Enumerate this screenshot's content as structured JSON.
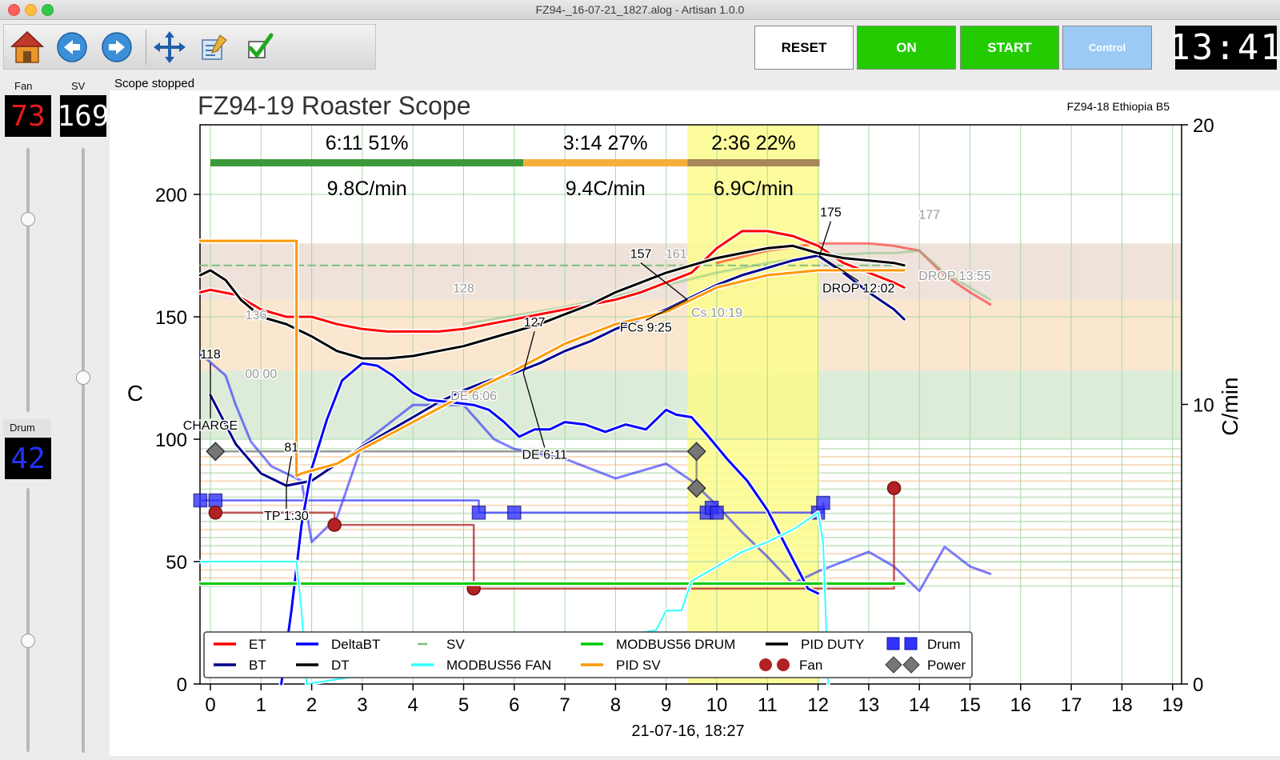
{
  "window": {
    "title": "FZ94-_16-07-21_1827.alog - Artisan 1.0.0"
  },
  "toolbar": {
    "icons": [
      "home-icon",
      "back-arrow-icon",
      "forward-arrow-icon",
      "move-cross-icon",
      "notes-icon",
      "checkmark-icon"
    ]
  },
  "buttons": {
    "reset": "RESET",
    "on": "ON",
    "start": "START",
    "control": "Control"
  },
  "clock": "13:41",
  "status": "Scope stopped",
  "left": {
    "fan_label": "Fan",
    "fan_value": "73",
    "fan_level": 0.73,
    "sv_label": "SV",
    "sv_value": "169",
    "sv_level": 0.62,
    "drum_label": "Drum",
    "drum_value": "42",
    "drum_level": 0.42
  },
  "colors": {
    "et": "#ff0000",
    "bt": "#00008b",
    "deltabt": "#0000ff",
    "dt": "#000000",
    "sv": "#7fbf7f",
    "fan_line": "#33ffff",
    "drum_line": "#00cc00",
    "pid_sv": "#ff9900",
    "pid_duty": "#000000",
    "events_drum": "#3333ff",
    "events_fan": "#b22222",
    "events_power": "#777777"
  },
  "chart_data": {
    "type": "line",
    "title": "FZ94-19 Roaster Scope",
    "background_profile": "FZ94-18 Ethiopia B5",
    "xlabel": "21-07-16, 18:27",
    "ylabel": "C",
    "ylabel_right": "C/min",
    "xlim": [
      0,
      19
    ],
    "ylim": [
      0,
      200
    ],
    "ylim_right": [
      0,
      20
    ],
    "x_ticks": [
      "0",
      "1",
      "2",
      "3",
      "4",
      "5",
      "6",
      "7",
      "8",
      "9",
      "10",
      "11",
      "12",
      "13",
      "14",
      "15",
      "16",
      "17",
      "18",
      "19"
    ],
    "y_ticks": [
      "0",
      "50",
      "100",
      "150",
      "200"
    ],
    "y_ticks_right": [
      "0",
      "10",
      "20"
    ],
    "phases": [
      {
        "time": "6:11",
        "pct": "51%",
        "ror": "9.8C/min",
        "start": 0,
        "end": 6.18,
        "color": "#3a9a3a"
      },
      {
        "time": "3:14",
        "pct": "27%",
        "ror": "9.4C/min",
        "start": 6.18,
        "end": 9.42,
        "color": "#f5b03c"
      },
      {
        "time": "2:36",
        "pct": "22%",
        "ror": "6.9C/min",
        "start": 9.42,
        "end": 12.03,
        "color": "#a8865a"
      }
    ],
    "bands": [
      {
        "y0": 128,
        "y1": 157,
        "color": "#fbe6cf"
      },
      {
        "y0": 157,
        "y1": 180,
        "color": "#eee2da"
      },
      {
        "y0": 100,
        "y1": 128,
        "color": "#dcecd8"
      }
    ],
    "yellow_region": [
      9.42,
      12.03
    ],
    "series": [
      {
        "name": "ET",
        "key": "et",
        "width": 3,
        "x": [
          -0.2,
          0,
          0.5,
          1,
          1.5,
          2,
          2.5,
          3,
          3.5,
          4,
          4.5,
          5,
          5.5,
          6,
          6.5,
          7,
          7.5,
          8,
          8.5,
          9,
          9.5,
          10,
          10.5,
          11,
          11.5,
          12,
          12.5,
          13,
          13.5,
          13.7
        ],
        "y": [
          160,
          161,
          159,
          153,
          150,
          150,
          147,
          145,
          144,
          144,
          144,
          145,
          147,
          149,
          151,
          153,
          155,
          157,
          160,
          164,
          168,
          178,
          185,
          185,
          183,
          179,
          172,
          168,
          164,
          162
        ]
      },
      {
        "name": "BT",
        "key": "bt",
        "width": 3,
        "x": [
          0,
          0.5,
          1,
          1.5,
          2,
          2.5,
          3,
          3.5,
          4,
          4.5,
          5,
          5.5,
          6,
          6.5,
          7,
          7.5,
          8,
          8.5,
          9,
          9.5,
          10,
          10.5,
          11,
          11.5,
          12,
          12.5,
          13,
          13.5,
          13.7
        ],
        "y": [
          118,
          98,
          86,
          81,
          83,
          90,
          97,
          103,
          109,
          115,
          120,
          124,
          127,
          131,
          136,
          140,
          145,
          149,
          153,
          158,
          163,
          167,
          170,
          173,
          175,
          168,
          160,
          153,
          149
        ]
      },
      {
        "name": "DT",
        "key": "dt",
        "width": 3,
        "x": [
          -0.2,
          0,
          0.3,
          0.6,
          1,
          1.5,
          2,
          2.5,
          3,
          3.5,
          4,
          4.5,
          5,
          5.5,
          6,
          6.5,
          7,
          7.5,
          8,
          8.5,
          9,
          9.5,
          10,
          10.5,
          11,
          11.5,
          12,
          12.5,
          13,
          13.5,
          13.7
        ],
        "y": [
          167,
          169,
          165,
          157,
          150,
          147,
          142,
          136,
          133,
          133,
          134,
          136,
          138,
          141,
          144,
          147,
          151,
          155,
          160,
          164,
          168,
          171,
          174,
          176,
          178,
          179,
          176,
          174,
          173,
          172,
          171
        ]
      },
      {
        "name": "DeltaBT",
        "key": "deltabt",
        "width": 3,
        "x": [
          1.4,
          1.6,
          1.8,
          2,
          2.3,
          2.6,
          3,
          3.3,
          3.6,
          4,
          4.3,
          4.8,
          5.2,
          5.5,
          5.8,
          6.1,
          6.4,
          6.7,
          7,
          7.4,
          7.8,
          8.2,
          8.6,
          9,
          9.2,
          9.5,
          9.8,
          10.2,
          10.6,
          11,
          11.5,
          11.8,
          12
        ],
        "y": [
          0,
          30,
          65,
          88,
          108,
          124,
          131,
          130,
          126,
          119,
          116,
          115,
          114,
          112,
          107,
          101,
          104,
          104,
          107,
          106,
          103,
          106,
          104,
          112,
          110,
          109,
          102,
          92,
          83,
          71,
          51,
          39,
          37
        ]
      },
      {
        "name": "PID SV",
        "key": "pid_sv",
        "width": 3,
        "x": [
          -0.2,
          1.7,
          1.7,
          1.8,
          2.5,
          3,
          4,
          5,
          6,
          7,
          8,
          9,
          10,
          11,
          12,
          13.7
        ],
        "y": [
          181,
          181,
          85,
          86,
          90,
          96,
          107,
          118,
          128,
          139,
          147,
          152,
          162,
          167,
          169,
          169
        ]
      },
      {
        "name": "MODBUS56 DRUM",
        "key": "drum_line",
        "width": 3,
        "x": [
          -0.2,
          13.7
        ],
        "y": [
          41,
          41
        ]
      },
      {
        "name": "MODBUS56 FAN",
        "key": "fan_line",
        "width": 2,
        "x": [
          -0.2,
          1.7,
          1.8,
          1.9,
          8.8,
          9.0,
          9.3,
          9.5,
          10,
          10.5,
          11,
          11.5,
          12,
          12.1,
          12.2
        ],
        "y": [
          50,
          50,
          30,
          0,
          22,
          30,
          30,
          42,
          48,
          54,
          58,
          63,
          70,
          58,
          0
        ]
      }
    ],
    "background_series": [
      {
        "name": "SV",
        "key": "sv",
        "dash": true,
        "x": [
          -0.2,
          13.7
        ],
        "y": [
          171,
          171
        ]
      },
      {
        "key": "et",
        "x": [
          10,
          11,
          12,
          13,
          13.5,
          14,
          14.5,
          15,
          15.4
        ],
        "y": [
          172,
          177,
          180,
          180,
          179,
          177,
          167,
          160,
          155
        ]
      },
      {
        "key": "sv",
        "x": [
          5,
          7,
          9,
          10,
          11,
          12,
          13,
          13.5,
          14,
          14.5,
          15,
          15.4
        ],
        "y": [
          147,
          154,
          163,
          168,
          172,
          175,
          176,
          176,
          177,
          168,
          162,
          157
        ]
      },
      {
        "key": "deltabt",
        "x": [
          -0.2,
          0.3,
          0.5,
          0.8,
          1.2,
          1.6,
          1.8,
          2.0,
          2.5,
          3,
          4,
          5,
          5.6,
          6,
          7,
          8,
          9,
          9.5,
          10,
          10.5,
          11,
          11.5,
          12,
          12.5,
          13,
          13.5,
          14,
          14.5,
          15,
          15.4
        ],
        "y": [
          135,
          126,
          114,
          99,
          89,
          85,
          83,
          58,
          68,
          98,
          114,
          114,
          100,
          96,
          92,
          84,
          90,
          83,
          73,
          62,
          52,
          41,
          46,
          50,
          54,
          48,
          38,
          56,
          48,
          45
        ]
      }
    ],
    "event_lines": [
      {
        "name": "Drum",
        "key": "events_drum",
        "marker": "square",
        "x": [
          -0.2,
          0.1,
          5.3,
          6.0,
          9.8,
          9.9,
          10.0,
          12.0,
          12.1
        ],
        "y": [
          75,
          75,
          70,
          70,
          70,
          72,
          70,
          70,
          74
        ]
      },
      {
        "name": "Fan",
        "key": "events_fan",
        "marker": "circle",
        "x": [
          0.1,
          2.45,
          5.2,
          13.5
        ],
        "y": [
          70,
          65,
          39,
          80
        ]
      },
      {
        "name": "Power",
        "key": "events_power",
        "marker": "diamond",
        "x": [
          0.1,
          9.6,
          9.6
        ],
        "y": [
          95,
          95,
          80
        ]
      }
    ],
    "annotations": [
      {
        "text": "CHARGE",
        "x": 0.0,
        "y": 118,
        "tx": 0.0,
        "ty": 104
      },
      {
        "text": "118",
        "x": 0.0,
        "y": 118,
        "tx": 0.0,
        "ty": 133
      },
      {
        "text": "TP 1:30",
        "x": 1.5,
        "y": 81,
        "tx": 1.5,
        "ty": 67
      },
      {
        "text": "81",
        "x": 1.5,
        "y": 81,
        "tx": 1.6,
        "ty": 95
      },
      {
        "text": "DE 6:11",
        "x": 6.18,
        "y": 127,
        "tx": 6.6,
        "ty": 92
      },
      {
        "text": "127",
        "x": 6.18,
        "y": 127,
        "tx": 6.4,
        "ty": 146
      },
      {
        "text": "FCs 9:25",
        "x": 9.42,
        "y": 157,
        "tx": 8.6,
        "ty": 144
      },
      {
        "text": "157",
        "x": 9.42,
        "y": 157,
        "tx": 8.5,
        "ty": 174
      },
      {
        "text": "DROP 12:02",
        "x": 12.03,
        "y": 175,
        "tx": 12.8,
        "ty": 160
      },
      {
        "text": "175",
        "x": 12.03,
        "y": 175,
        "tx": 12.25,
        "ty": 191
      }
    ],
    "background_annotations": [
      {
        "text": "136",
        "tx": 0.9,
        "ty": 149
      },
      {
        "text": "00:00",
        "tx": 1.0,
        "ty": 125
      },
      {
        "text": "128",
        "tx": 5.0,
        "ty": 160
      },
      {
        "text": "DE 6:06",
        "tx": 5.2,
        "ty": 116
      },
      {
        "text": "161",
        "tx": 9.2,
        "ty": 174
      },
      {
        "text": "Cs 10:19",
        "tx": 10.0,
        "ty": 150
      },
      {
        "text": "177",
        "tx": 14.2,
        "ty": 190
      },
      {
        "text": "DROP 13:55",
        "tx": 14.7,
        "ty": 165
      }
    ],
    "legend_placement": "bottom-left",
    "legend": [
      {
        "name": "ET",
        "key": "et",
        "kind": "line"
      },
      {
        "name": "BT",
        "key": "bt",
        "kind": "line"
      },
      {
        "name": "DeltaBT",
        "key": "deltabt",
        "kind": "line"
      },
      {
        "name": "DT",
        "key": "dt",
        "kind": "line"
      },
      {
        "name": "SV",
        "key": "sv",
        "kind": "dash"
      },
      {
        "name": "MODBUS56 FAN",
        "key": "fan_line",
        "kind": "line"
      },
      {
        "name": "MODBUS56 DRUM",
        "key": "drum_line",
        "kind": "line"
      },
      {
        "name": "PID SV",
        "key": "pid_sv",
        "kind": "line"
      },
      {
        "name": "PID DUTY",
        "key": "pid_duty",
        "kind": "line"
      },
      {
        "name": "Fan",
        "key": "events_fan",
        "kind": "circle"
      },
      {
        "name": "Drum",
        "key": "events_drum",
        "kind": "square"
      },
      {
        "name": "Power",
        "key": "events_power",
        "kind": "diamond"
      }
    ]
  }
}
